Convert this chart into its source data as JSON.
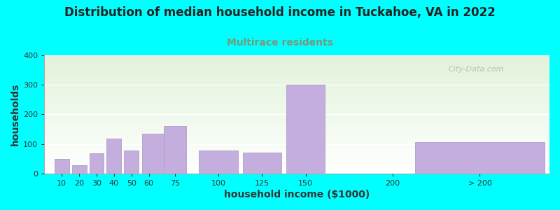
{
  "title": "Distribution of median household income in Tuckahoe, VA in 2022",
  "subtitle": "Multirace residents",
  "xlabel": "household income ($1000)",
  "ylabel": "households",
  "background_outer": "#00FFFF",
  "bar_color": "#C4AEDD",
  "bar_edge_color": "#B09CC8",
  "watermark": "City-Data.com",
  "values": [
    50,
    28,
    68,
    118,
    78,
    135,
    160,
    78,
    70,
    300,
    105
  ],
  "bar_centers": [
    10,
    20,
    30,
    40,
    50,
    62.5,
    75,
    100,
    125,
    150,
    250
  ],
  "bar_widths": [
    9,
    9,
    9,
    9,
    9,
    14,
    14,
    24,
    24,
    24,
    80
  ],
  "ylim": [
    0,
    400
  ],
  "yticks": [
    0,
    100,
    200,
    300,
    400
  ],
  "xtick_positions": [
    10,
    20,
    30,
    40,
    50,
    60,
    75,
    100,
    125,
    150,
    200,
    250
  ],
  "xtick_labels": [
    "10",
    "20",
    "30",
    "40",
    "50",
    "60",
    "75",
    "100",
    "125",
    "150",
    "200",
    "> 200"
  ],
  "xlim": [
    0,
    290
  ],
  "title_fontsize": 12,
  "subtitle_fontsize": 10,
  "axis_label_fontsize": 10,
  "tick_fontsize": 8,
  "subtitle_color": "#779977",
  "title_color": "#222222"
}
